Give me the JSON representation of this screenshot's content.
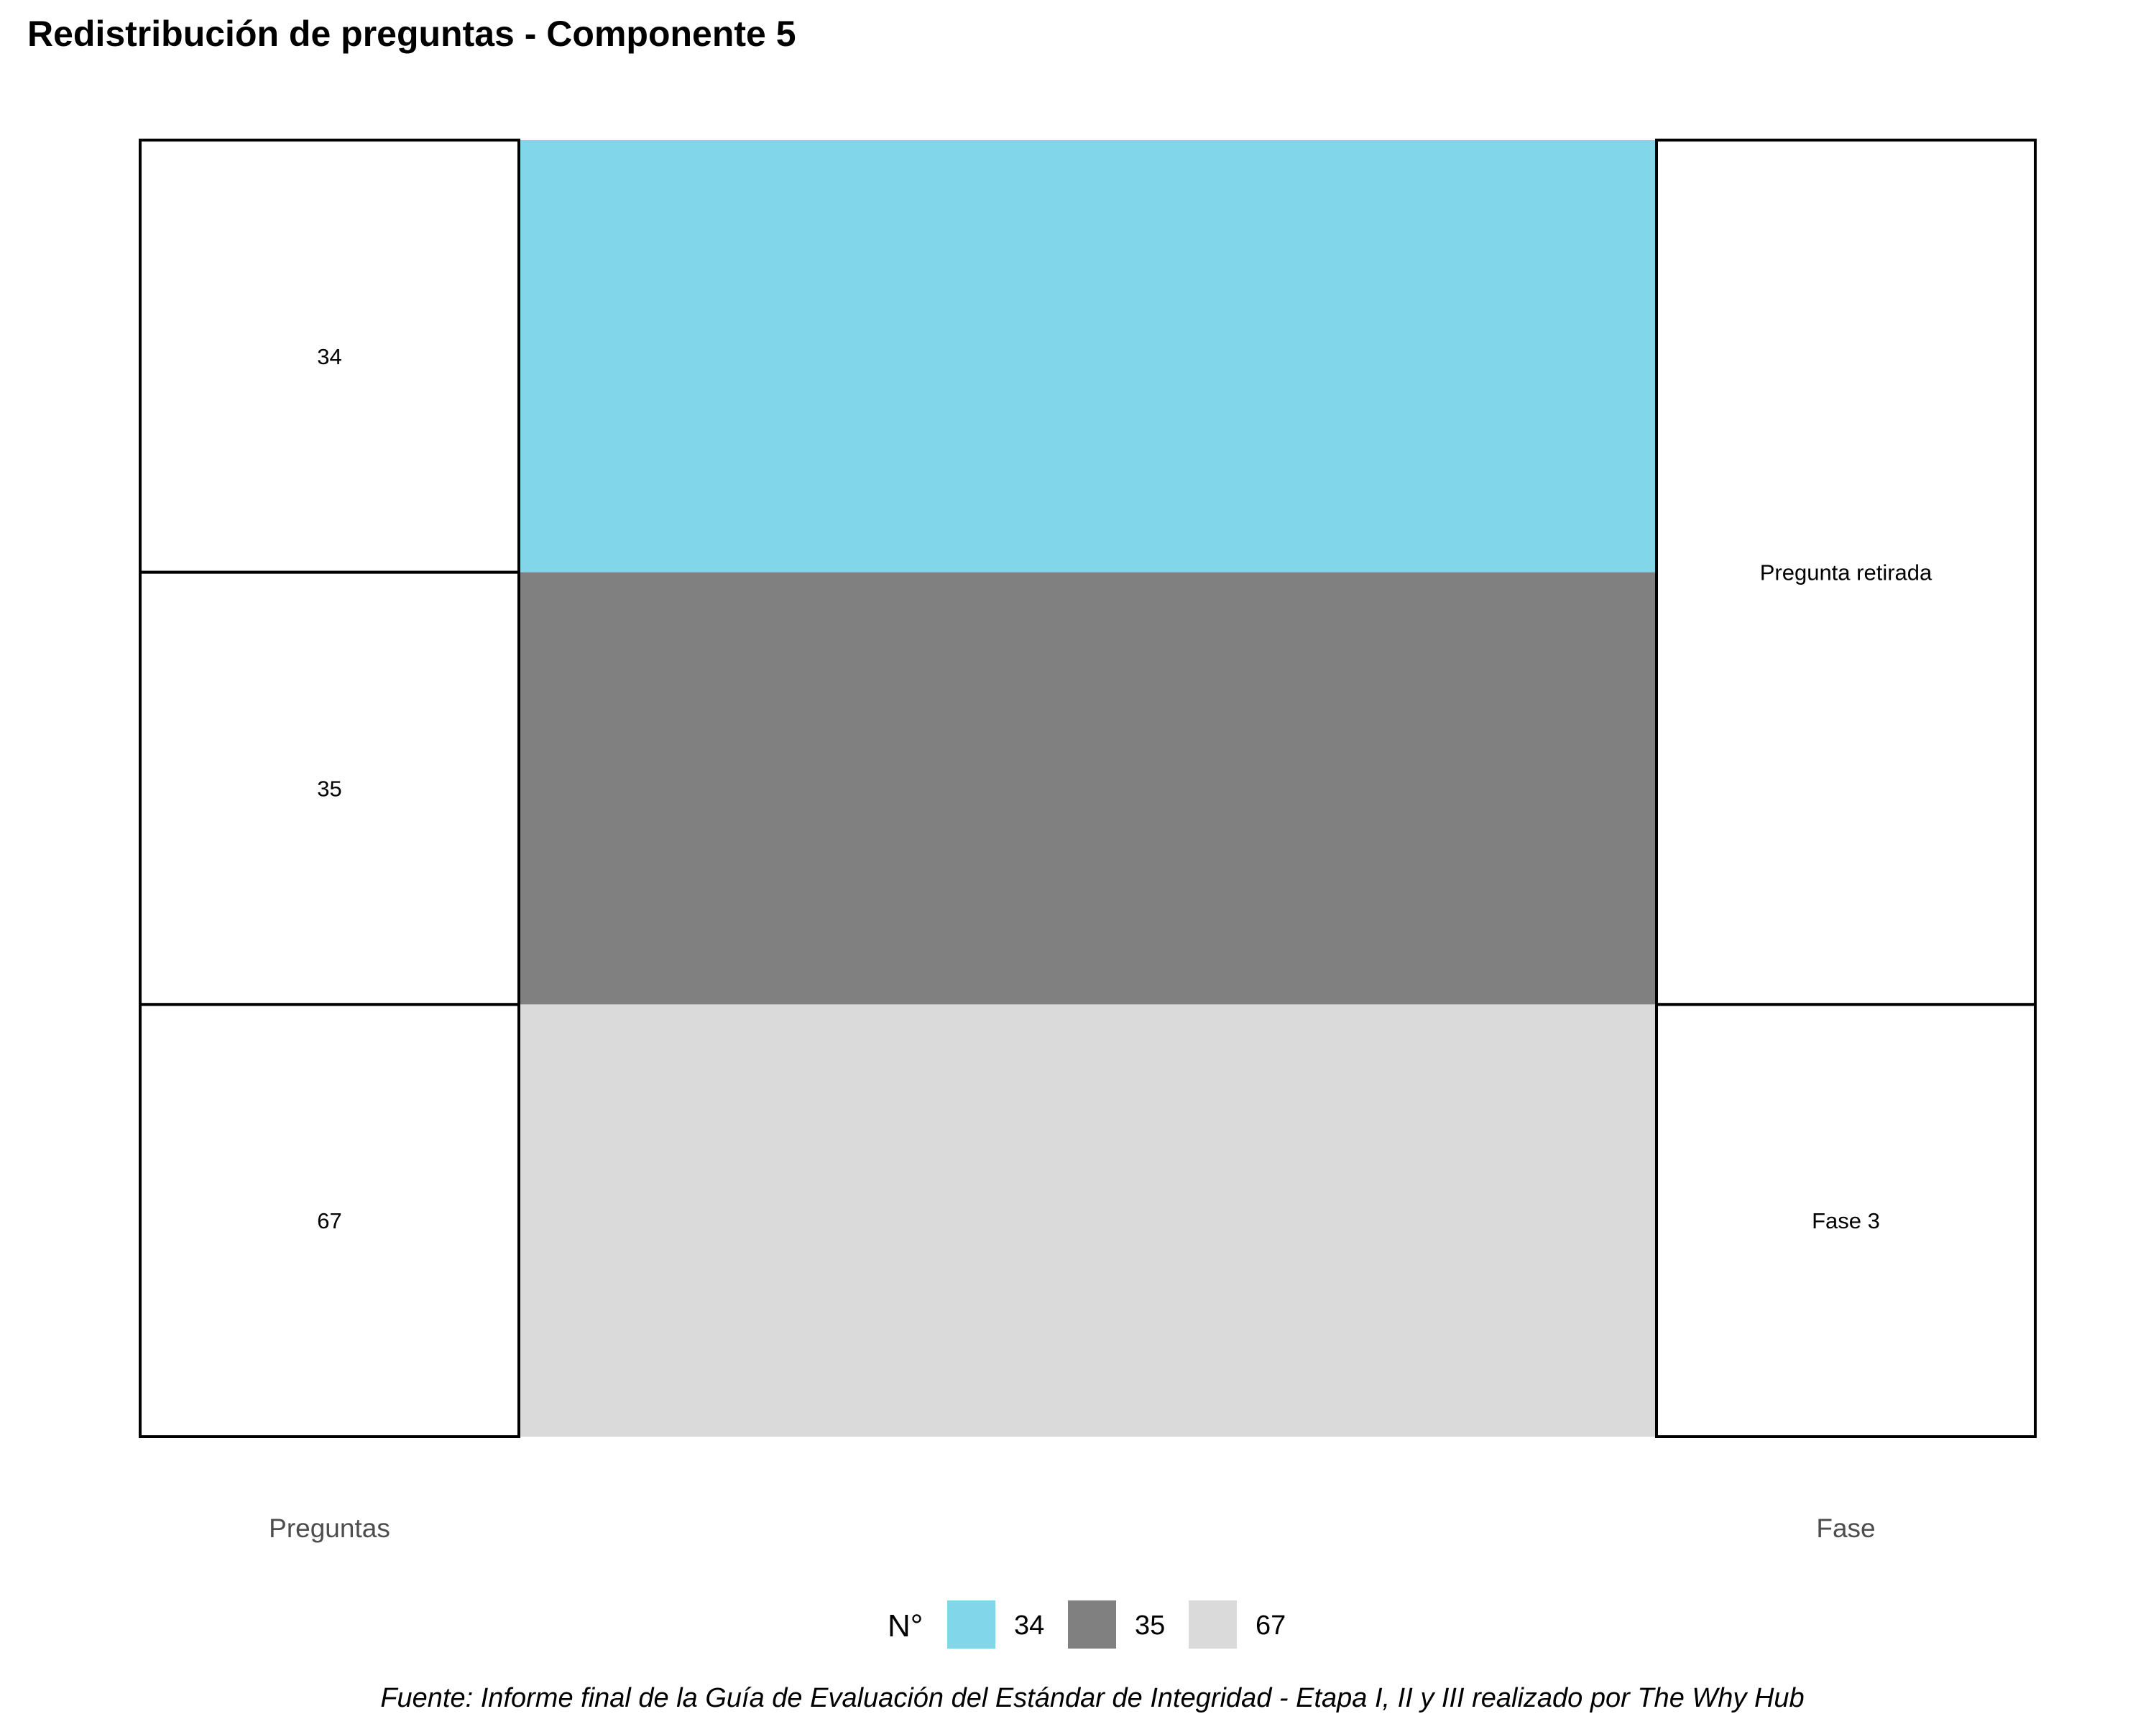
{
  "chart_data": {
    "type": "alluvial",
    "title": "Redistribución de preguntas - Componente 5",
    "caption": "Fuente: Informe final de la Guía de Evaluación del Estándar de Integridad - Etapa I, II y III realizado por The Why Hub",
    "axes": [
      "Preguntas",
      "Fase"
    ],
    "strata": {
      "Preguntas": [
        {
          "label": "34",
          "value": 1
        },
        {
          "label": "35",
          "value": 1
        },
        {
          "label": "67",
          "value": 1
        }
      ],
      "Fase": [
        {
          "label": "Pregunta retirada",
          "value": 2
        },
        {
          "label": "Fase 3",
          "value": 1
        }
      ]
    },
    "flows": [
      {
        "from": "34",
        "to": "Pregunta retirada",
        "value": 1,
        "fill": "34"
      },
      {
        "from": "35",
        "to": "Pregunta retirada",
        "value": 1,
        "fill": "35"
      },
      {
        "from": "67",
        "to": "Fase 3",
        "value": 1,
        "fill": "67"
      }
    ],
    "legend": {
      "title": "N°",
      "position": "bottom",
      "items": [
        {
          "label": "34",
          "color": "#82D6E9"
        },
        {
          "label": "35",
          "color": "#808080"
        },
        {
          "label": "67",
          "color": "#DADADA"
        }
      ]
    }
  }
}
